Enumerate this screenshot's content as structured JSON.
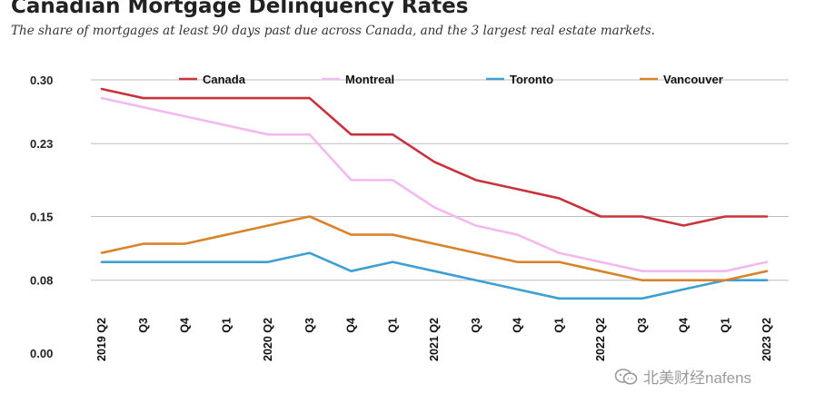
{
  "header": {
    "title": "Canadian Mortgage Delinquency Rates",
    "subtitle": "The share of mortgages at least 90 days past due across Canada, and the 3 largest real estate markets."
  },
  "watermark": {
    "text": "北美财经nafens"
  },
  "chart_data": {
    "type": "line",
    "title": "Canadian Mortgage Delinquency Rates",
    "subtitle": "The share of mortgages at least 90 days past due across Canada, and the 3 largest real estate markets.",
    "xlabel": "",
    "ylabel": "",
    "x": [
      "2019 Q2",
      "Q3",
      "Q4",
      "Q1",
      "2020 Q2",
      "Q3",
      "Q4",
      "Q1",
      "2021 Q2",
      "Q3",
      "Q4",
      "Q1",
      "2022 Q2",
      "Q3",
      "Q4",
      "Q1",
      "2023 Q2"
    ],
    "y_ticks": [
      0.3,
      0.23,
      0.15,
      0.08,
      0.0
    ],
    "y_tick_labels": [
      "0.30",
      "0.23",
      "0.15",
      "0.08",
      "0.00"
    ],
    "ylim": [
      0,
      0.3
    ],
    "grid": true,
    "legend_position": "top",
    "series": [
      {
        "name": "Canada",
        "color": "#c8323c",
        "values": [
          0.29,
          0.28,
          0.28,
          0.28,
          0.28,
          0.28,
          0.24,
          0.24,
          0.21,
          0.19,
          0.18,
          0.17,
          0.15,
          0.15,
          0.14,
          0.15,
          0.15
        ]
      },
      {
        "name": "Montreal",
        "color": "#f4b8f0",
        "values": [
          0.28,
          0.27,
          0.26,
          0.25,
          0.24,
          0.24,
          0.19,
          0.19,
          0.16,
          0.14,
          0.13,
          0.11,
          0.1,
          0.09,
          0.09,
          0.09,
          0.1
        ]
      },
      {
        "name": "Toronto",
        "color": "#3d9fd2",
        "values": [
          0.1,
          0.1,
          0.1,
          0.1,
          0.1,
          0.11,
          0.09,
          0.1,
          0.09,
          0.08,
          0.07,
          0.06,
          0.06,
          0.06,
          0.07,
          0.08,
          0.08
        ]
      },
      {
        "name": "Vancouver",
        "color": "#d9832a",
        "values": [
          0.11,
          0.12,
          0.12,
          0.13,
          0.14,
          0.15,
          0.13,
          0.13,
          0.12,
          0.11,
          0.1,
          0.1,
          0.09,
          0.08,
          0.08,
          0.08,
          0.09
        ]
      }
    ]
  }
}
